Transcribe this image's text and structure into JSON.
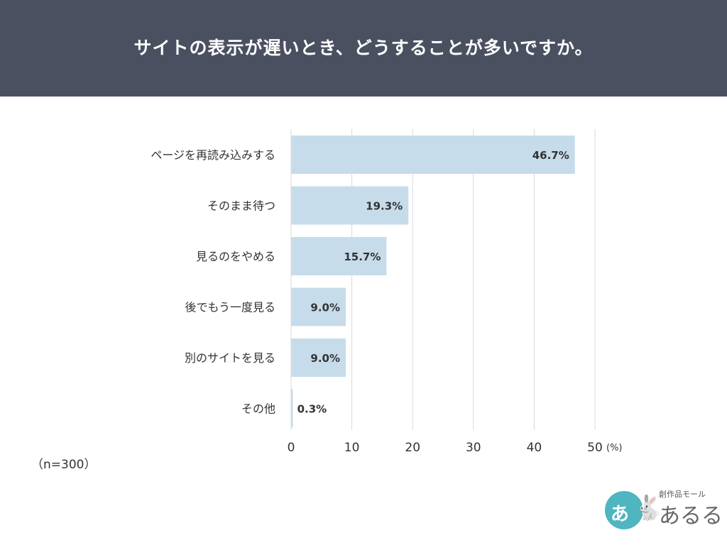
{
  "header": {
    "title": "サイトの表示が遅いとき、どうすることが多いですか。"
  },
  "note": "（n=300）",
  "logo": {
    "tagline": "創作品モール",
    "name": "あるる",
    "circle_char": "あ",
    "icon": "rabbit-icon"
  },
  "colors": {
    "header_bg": "#4b5061",
    "bar": "#c7dcea",
    "grid": "#d9d9d9",
    "text": "#333333"
  },
  "chart_data": {
    "type": "bar",
    "orientation": "horizontal",
    "title": "サイトの表示が遅いとき、どうすることが多いですか。",
    "categories": [
      "ページを再読み込みする",
      "そのまま待つ",
      "見るのをやめる",
      "後でもう一度見る",
      "別のサイトを見る",
      "その他"
    ],
    "values": [
      46.7,
      19.3,
      15.7,
      9.0,
      9.0,
      0.3
    ],
    "value_labels": [
      "46.7%",
      "19.3%",
      "15.7%",
      "9.0%",
      "9.0%",
      "0.3%"
    ],
    "xlim": [
      0,
      50
    ],
    "xticks": [
      "0",
      "10",
      "20",
      "30",
      "40",
      "50"
    ],
    "xunit": "(%)",
    "grid": true,
    "legend": "none"
  }
}
